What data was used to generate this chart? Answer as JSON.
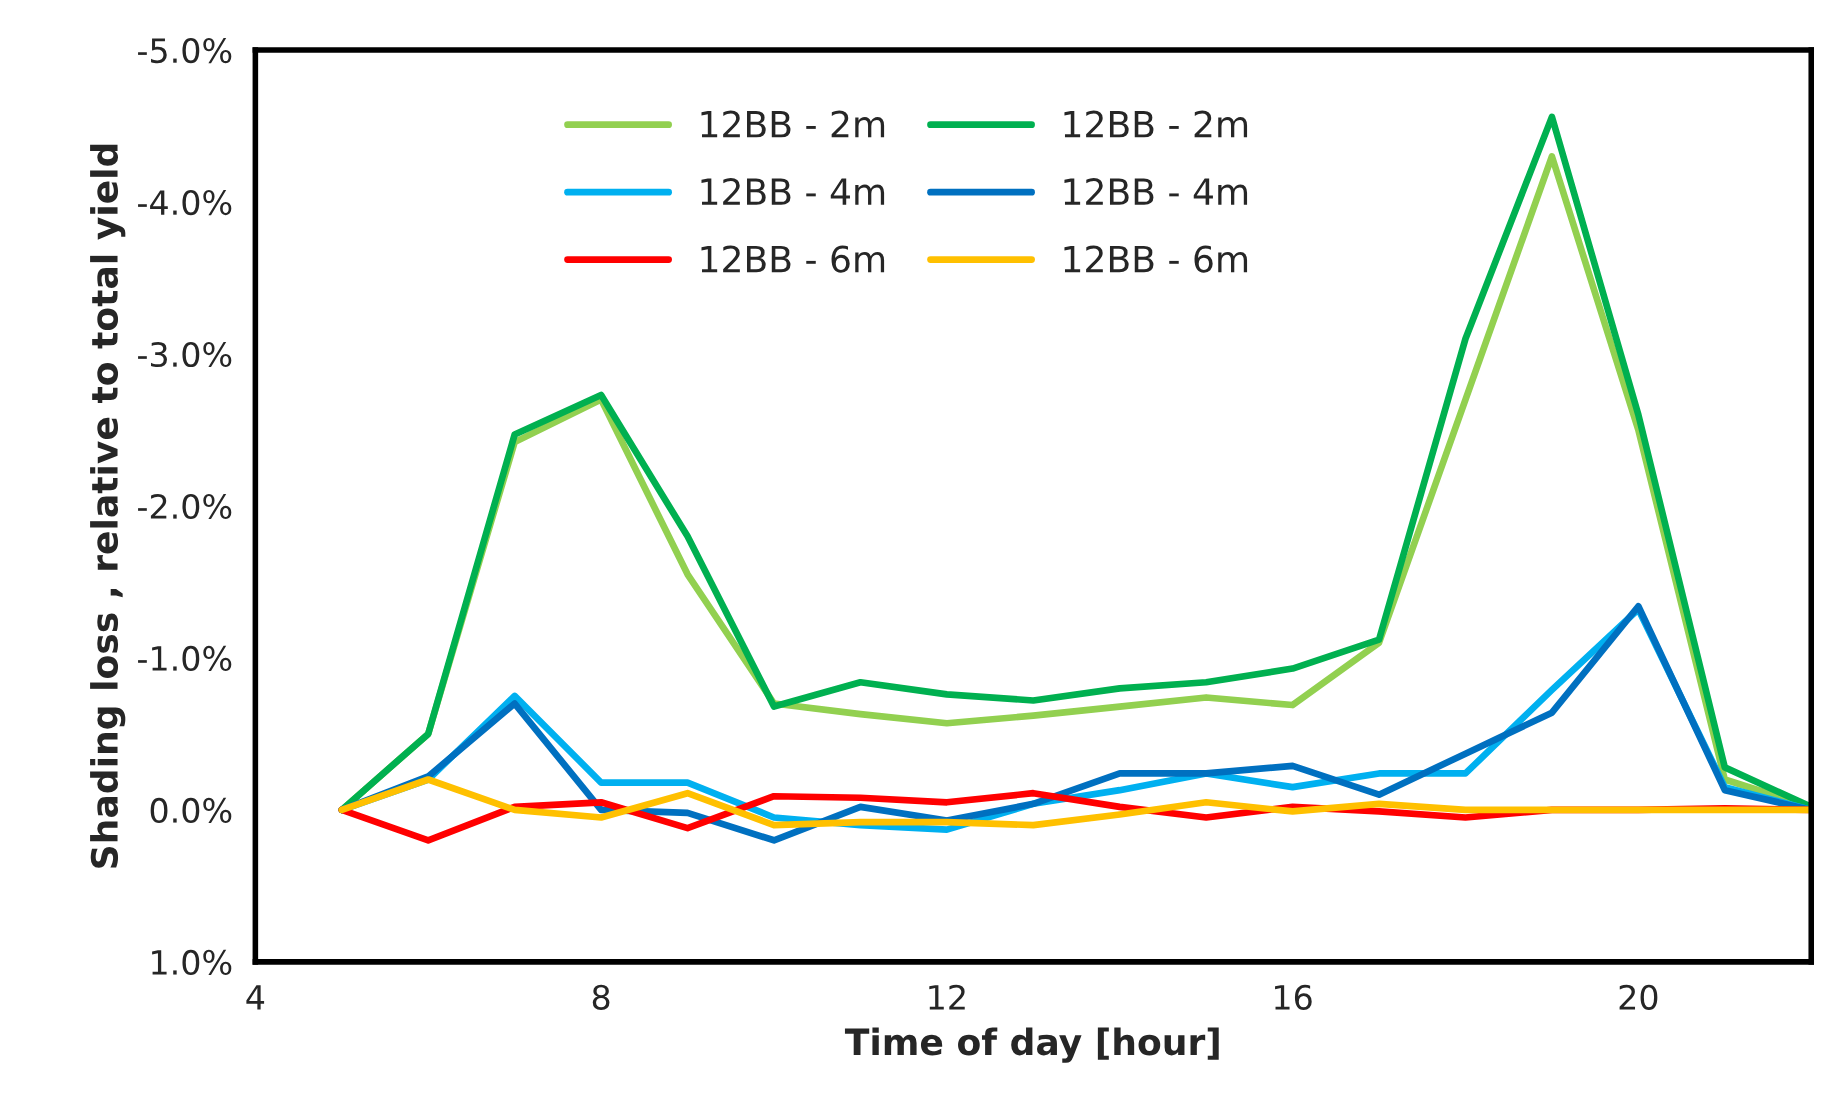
{
  "chart_data": {
    "type": "line",
    "xlabel": "Time of day [hour]",
    "ylabel": "Shading loss , relative to total yield",
    "x": [
      5,
      6,
      7,
      8,
      9,
      10,
      11,
      12,
      13,
      14,
      15,
      16,
      17,
      18,
      19,
      20,
      21,
      22
    ],
    "series": [
      {
        "name": "12BB - 2m",
        "color": "#92d050",
        "values": [
          0,
          -0.5,
          -2.42,
          -2.7,
          -1.55,
          -0.7,
          -0.63,
          -0.57,
          -0.62,
          -0.68,
          -0.74,
          -0.69,
          -1.1,
          -2.7,
          -4.3,
          -2.5,
          -0.2,
          -0.02
        ]
      },
      {
        "name": "12BB - 2m",
        "color": "#00b050",
        "values": [
          0,
          -0.5,
          -2.47,
          -2.73,
          -1.8,
          -0.68,
          -0.84,
          -0.76,
          -0.72,
          -0.8,
          -0.84,
          -0.93,
          -1.12,
          -3.1,
          -4.56,
          -2.6,
          -0.28,
          -0.02
        ]
      },
      {
        "name": "12BB - 4m",
        "color": "#00b0f0",
        "values": [
          0,
          -0.2,
          -0.75,
          -0.18,
          -0.18,
          0.05,
          0.1,
          0.13,
          -0.04,
          -0.13,
          -0.24,
          -0.15,
          -0.24,
          -0.24,
          -0.79,
          -1.32,
          -0.15,
          0
        ]
      },
      {
        "name": "12BB - 4m",
        "color": "#0070c0",
        "values": [
          0,
          -0.22,
          -0.7,
          0.0,
          0.02,
          0.2,
          -0.02,
          0.07,
          -0.04,
          -0.24,
          -0.24,
          -0.29,
          -0.1,
          -0.37,
          -0.64,
          -1.34,
          -0.13,
          0
        ]
      },
      {
        "name": "12BB - 6m",
        "color": "#ff0000",
        "values": [
          0,
          0.2,
          -0.02,
          -0.05,
          0.12,
          -0.09,
          -0.08,
          -0.05,
          -0.11,
          -0.02,
          0.05,
          -0.02,
          0.01,
          0.05,
          0,
          0,
          -0.01,
          0
        ]
      },
      {
        "name": "12BB - 6m",
        "color": "#ffc000",
        "values": [
          0,
          -0.2,
          0,
          0.05,
          -0.11,
          0.1,
          0.08,
          0.08,
          0.1,
          0.03,
          -0.05,
          0.01,
          -0.04,
          0,
          0,
          0,
          0,
          0
        ]
      }
    ],
    "xlim": [
      4,
      22
    ],
    "xticks": [
      4,
      8,
      12,
      16,
      20
    ],
    "ylim": [
      1,
      -5
    ],
    "yticks": [
      {
        "value": -5,
        "label": "-5.0%"
      },
      {
        "value": -4,
        "label": "-4.0%"
      },
      {
        "value": -3,
        "label": "-3.0%"
      },
      {
        "value": -2,
        "label": "-2.0%"
      },
      {
        "value": -1,
        "label": "-1.0%"
      },
      {
        "value": 0,
        "label": "0.0%"
      },
      {
        "value": 1,
        "label": "1.0%"
      }
    ],
    "grid": false,
    "legend": "top",
    "marker": "none",
    "line_style": "solid"
  }
}
